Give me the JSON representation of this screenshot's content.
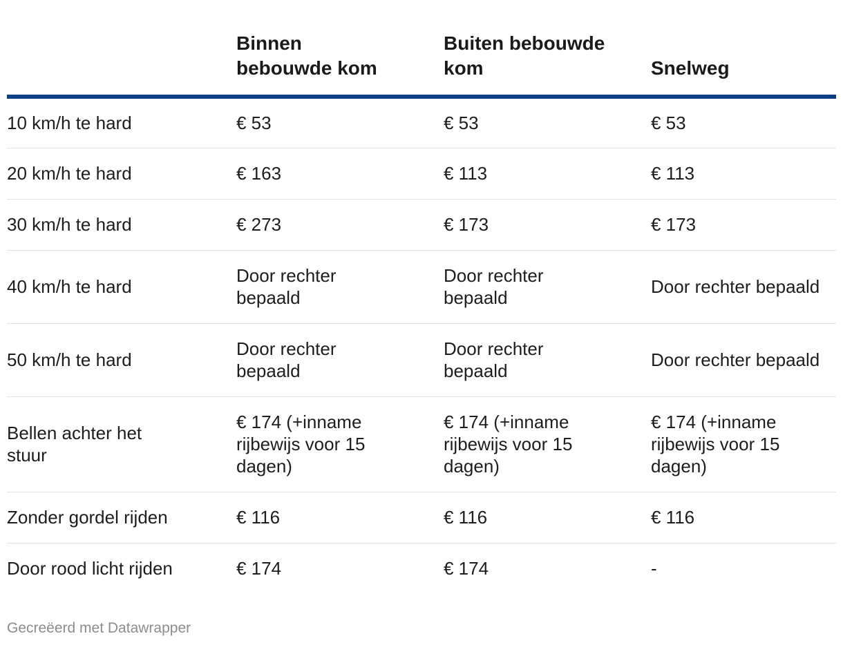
{
  "chart_data": {
    "type": "table",
    "columns": [
      "",
      "Binnen bebouwde kom",
      "Buiten bebouwde kom",
      "Snelweg"
    ],
    "rows": [
      {
        "label": "10 km/h te hard",
        "values": [
          "€ 53",
          "€ 53",
          "€ 53"
        ]
      },
      {
        "label": "20 km/h te hard",
        "values": [
          "€ 163",
          "€ 113",
          "€ 113"
        ]
      },
      {
        "label": "30 km/h te hard",
        "values": [
          "€ 273",
          "€ 173",
          "€ 173"
        ]
      },
      {
        "label": "40 km/h te hard",
        "values": [
          "Door rechter bepaald",
          "Door rechter bepaald",
          "Door rechter bepaald"
        ]
      },
      {
        "label": "50 km/h te hard",
        "values": [
          "Door rechter bepaald",
          "Door rechter bepaald",
          "Door rechter bepaald"
        ]
      },
      {
        "label": "Bellen achter het stuur",
        "values": [
          "€ 174 (+inname rijbewijs voor 15 dagen)",
          "€ 174 (+inname rijbewijs voor 15 dagen)",
          "€ 174 (+inname rijbewijs voor 15 dagen)"
        ]
      },
      {
        "label": "Zonder gordel rijden",
        "values": [
          "€ 116",
          "€ 116",
          "€ 116"
        ]
      },
      {
        "label": "Door rood licht rijden",
        "values": [
          "€ 174",
          "€ 174",
          "-"
        ]
      }
    ]
  },
  "colors": {
    "header_rule": "#0b3f86",
    "row_divider": "#e2e2e2",
    "footer_text": "#8c8c8c"
  },
  "footer": {
    "note": "Gecreëerd met Datawrapper"
  }
}
